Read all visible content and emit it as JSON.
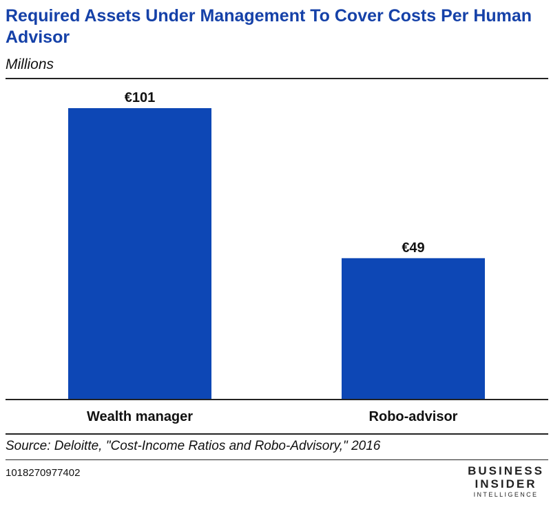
{
  "chart_data": {
    "type": "bar",
    "title": "Required Assets Under Management To Cover Costs Per Human Advisor",
    "subtitle": "Millions",
    "categories": [
      "Wealth manager",
      "Robo-advisor"
    ],
    "values": [
      101,
      49
    ],
    "data_labels": [
      "€101",
      "€49"
    ],
    "ylim": [
      0,
      101
    ],
    "grid": false,
    "bar_color": "#0d47b5"
  },
  "footer": {
    "source": "Source: Deloitte, \"Cost-Income Ratios and Robo-Advisory,\" 2016",
    "chart_id": "1018270977402",
    "logo": {
      "line1": "BUSINESS",
      "line2": "INSIDER",
      "line3": "INTELLIGENCE"
    }
  }
}
